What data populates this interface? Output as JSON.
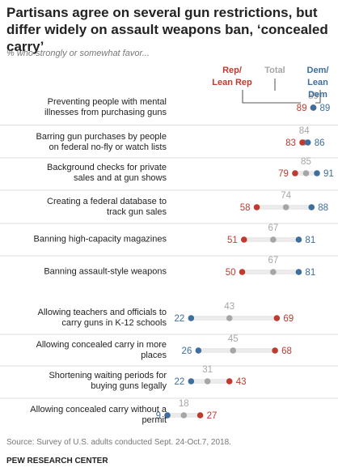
{
  "chart_data": {
    "type": "dot",
    "title": "Partisans agree on several gun restrictions, but differ widely on assault weapons ban, ‘concealed carry’",
    "subtitle": "% who strongly or somewhat favor...",
    "categories": [
      "Preventing people with mental illnesses from purchasing guns",
      "Barring gun purchases by people on federal no-fly or watch lists",
      "Background checks for private sales and at gun shows",
      "Creating a federal database to track gun sales",
      "Banning high-capacity magazines",
      "Banning assault-style weapons",
      "Allowing teachers and officials to carry guns in K-12 schools",
      "Allowing concealed carry in more places",
      "Shortening waiting periods for buying guns legally",
      "Allowing concealed carry without a permit"
    ],
    "series": [
      {
        "name": "Rep/ Lean Rep",
        "color": "#bf3a2f",
        "values": [
          89,
          83,
          79,
          58,
          51,
          50,
          69,
          68,
          43,
          27
        ]
      },
      {
        "name": "Total",
        "color": "#a6a6a6",
        "values": [
          89,
          84,
          85,
          74,
          67,
          67,
          43,
          45,
          31,
          18
        ]
      },
      {
        "name": "Dem/ Lean Dem",
        "color": "#3d6e9c",
        "values": [
          89,
          86,
          91,
          88,
          81,
          81,
          22,
          26,
          22,
          9
        ]
      }
    ],
    "source": "Source: Survey of U.S. adults conducted Sept. 24-Oct.7, 2018.",
    "credit": "PEW RESEARCH CENTER"
  }
}
